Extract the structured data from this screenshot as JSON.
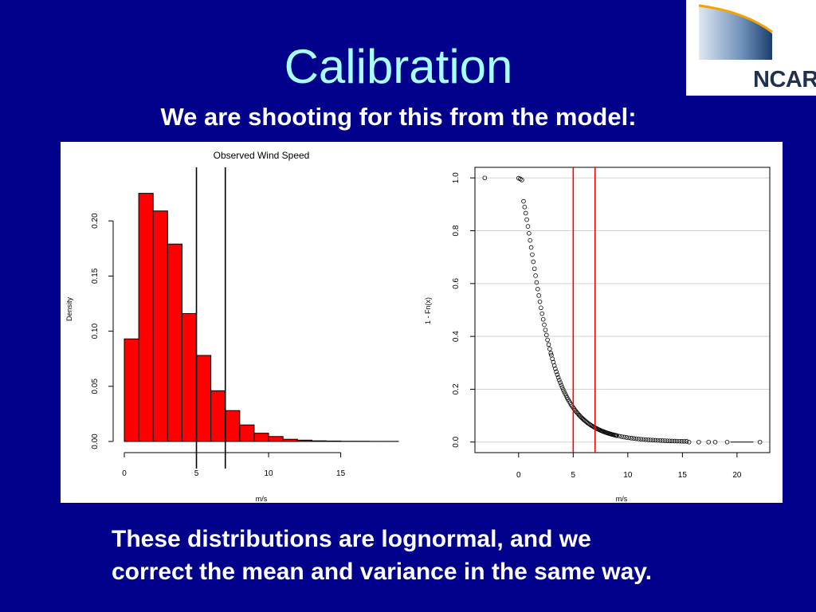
{
  "slide": {
    "title": "Calibration",
    "subtitle": "We are shooting for this from the model:",
    "caption_line1": "These distributions are lognormal, and we",
    "caption_line2": "correct the mean and variance in the same way.",
    "logo_text": "NCAR"
  },
  "colors": {
    "background": "#00008b",
    "title": "#a7ffff",
    "bars": "#ff0000",
    "threshold_left": "#000000",
    "threshold_right": "#ff0000"
  },
  "chart_data": [
    {
      "type": "bar",
      "title": "Observed Wind Speed",
      "xlabel": "m/s",
      "ylabel": "Density",
      "bin_width": 1,
      "bin_edges": [
        0,
        1,
        2,
        3,
        4,
        5,
        6,
        7,
        8,
        9,
        10,
        11,
        12,
        13,
        14,
        15,
        16,
        17,
        18,
        19
      ],
      "values": [
        0.093,
        0.225,
        0.209,
        0.179,
        0.116,
        0.078,
        0.046,
        0.028,
        0.015,
        0.0075,
        0.0045,
        0.002,
        0.0012,
        0.0006,
        0.0004,
        0.0002,
        0.0002,
        0.0001,
        0.0001
      ],
      "xlim": [
        0,
        19
      ],
      "ylim": [
        0,
        0.25
      ],
      "x_ticks": [
        0,
        5,
        10,
        15
      ],
      "x_tick_labels": [
        "0",
        "5",
        "10",
        "15"
      ],
      "y_ticks": [
        0,
        0.05,
        0.1,
        0.15,
        0.2
      ],
      "y_tick_labels": [
        "0.00",
        "0.05",
        "0.10",
        "0.15",
        "0.20"
      ],
      "vertical_lines": [
        5,
        7
      ],
      "grid": false
    },
    {
      "type": "scatter",
      "title": "",
      "xlabel": "m/s",
      "ylabel": "1 - Fn(x)",
      "marker": "open-circle",
      "xlim": [
        -4,
        23
      ],
      "ylim": [
        -0.04,
        1.04
      ],
      "x_ticks": [
        0,
        5,
        10,
        15,
        20
      ],
      "x_tick_labels": [
        "0",
        "5",
        "10",
        "15",
        "20"
      ],
      "y_ticks": [
        0,
        0.2,
        0.4,
        0.6,
        0.8,
        1.0
      ],
      "y_tick_labels": [
        "0.0",
        "0.2",
        "0.4",
        "0.6",
        "0.8",
        "1.0"
      ],
      "vertical_lines": [
        5,
        7
      ],
      "grid": true,
      "curve": {
        "mu": 1.06,
        "sigma": 0.62,
        "shift": 0.8
      },
      "points": [
        [
          -3.1,
          1.0
        ],
        [
          0.0,
          0.999
        ],
        [
          0.15,
          0.996
        ],
        [
          0.3,
          0.992
        ],
        [
          15.6,
          0.0
        ],
        [
          16.5,
          0.0
        ],
        [
          17.4,
          0.0
        ],
        [
          18.0,
          0.0
        ],
        [
          19.1,
          0.0
        ],
        [
          22.1,
          0.0
        ]
      ]
    }
  ]
}
